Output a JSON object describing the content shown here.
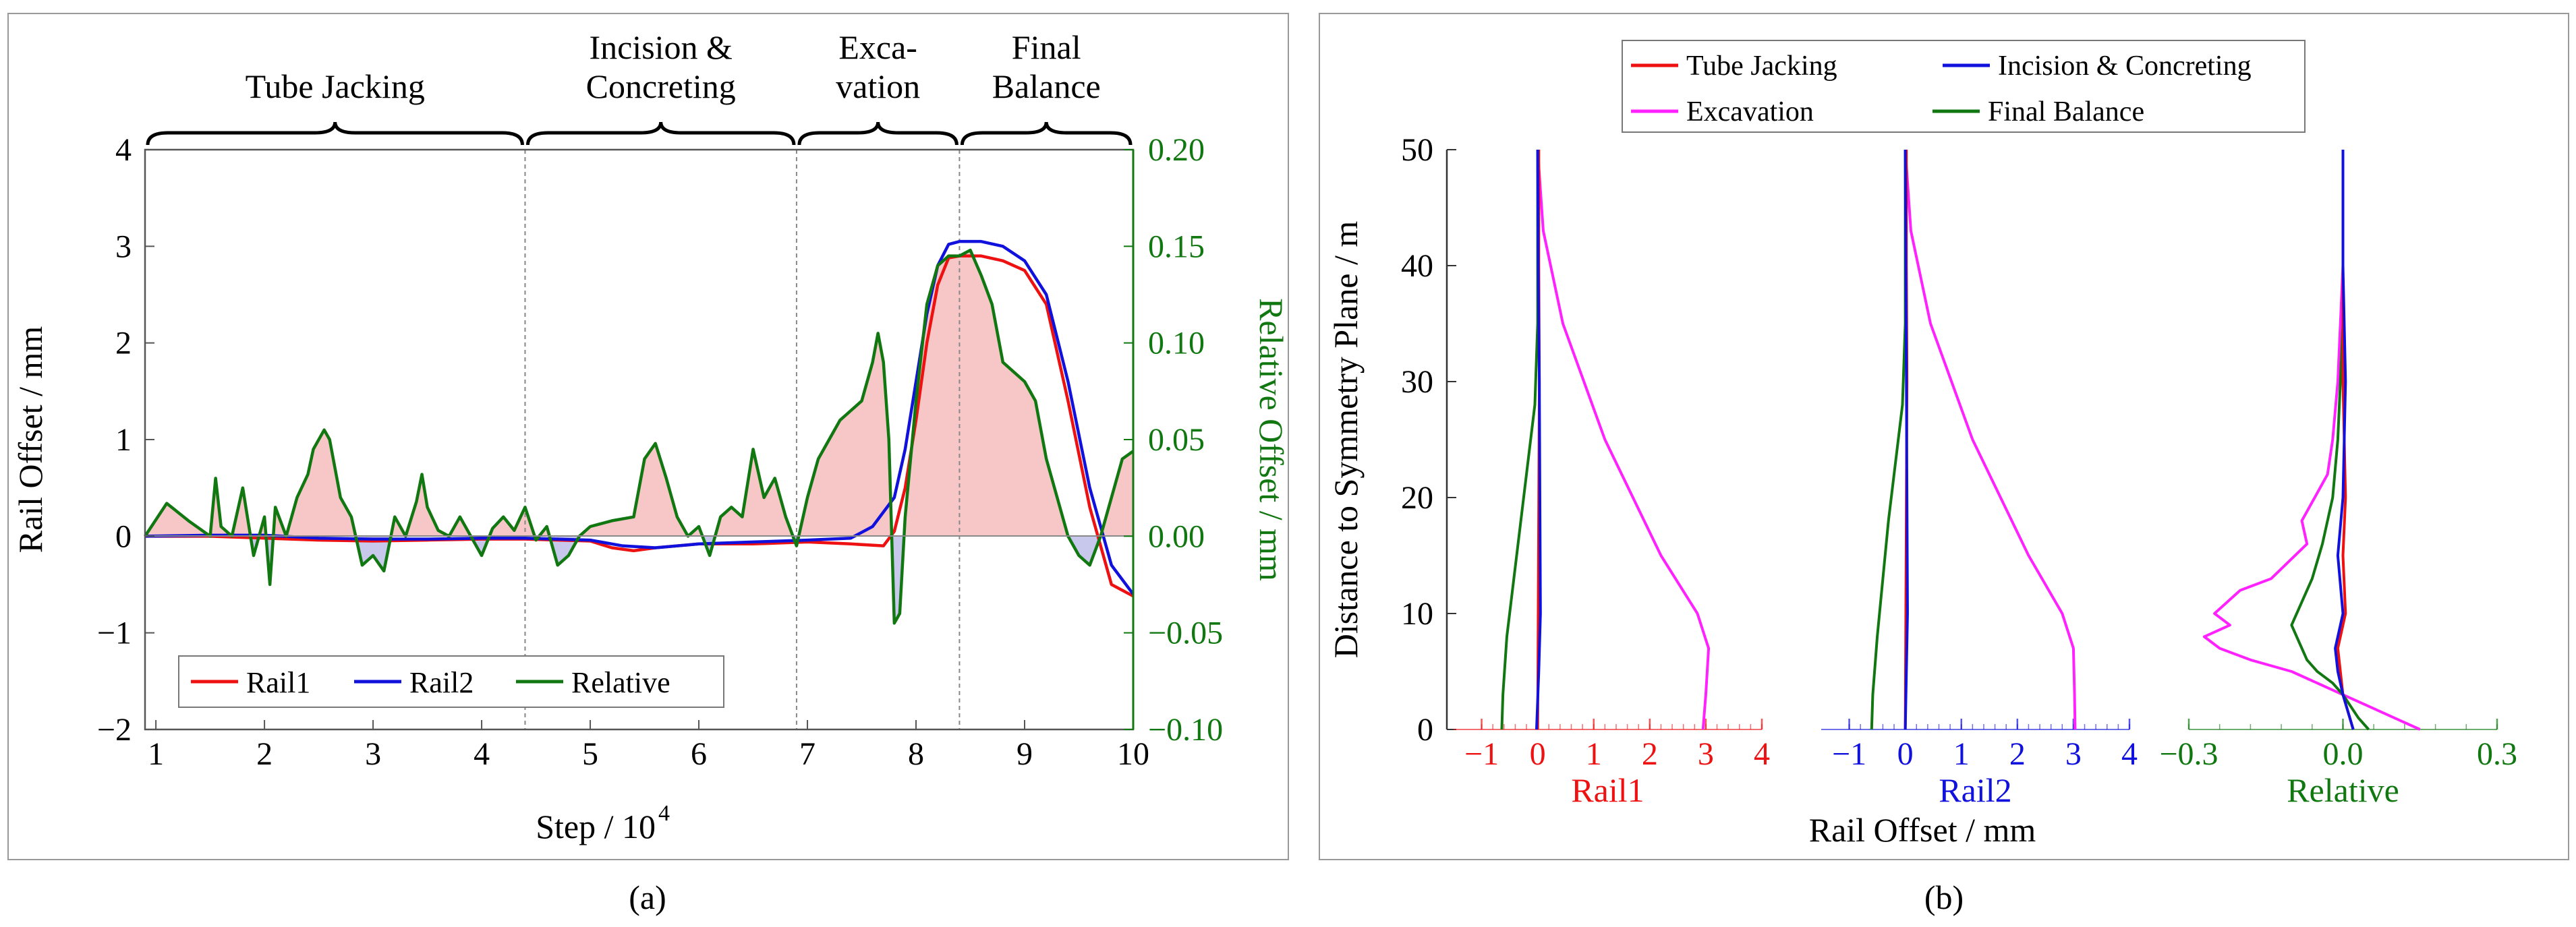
{
  "colors": {
    "rail1": "#ee1111",
    "rail2": "#1111dd",
    "relative": "#117711",
    "excavation": "#ff22ff",
    "fill_pos": "#f7c6c6",
    "fill_neg": "#c8c8ec",
    "grid": "#999999"
  },
  "panels": {
    "a": {
      "caption": "(a)"
    },
    "b": {
      "caption": "(b)"
    }
  },
  "chart_data": [
    {
      "id": "a",
      "type": "line",
      "xlabel": "Step / 10",
      "xlabel_exp": "4",
      "ylabel": "Rail Offset / mm",
      "ylabel_right": "Relative Offset / mm",
      "xlim": [
        0.9,
        10
      ],
      "ylim": [
        -2,
        4
      ],
      "ylim_right": [
        -0.1,
        0.2
      ],
      "xticks": [
        1,
        2,
        3,
        4,
        5,
        6,
        7,
        8,
        9,
        10
      ],
      "yticks": [
        -2,
        -1,
        0,
        1,
        2,
        3,
        4
      ],
      "yticks_right": [
        "−0.10",
        "−0.05",
        "0.00",
        "0.05",
        "0.10",
        "0.15",
        "0.20"
      ],
      "phases": [
        {
          "name": "Tube Jacking",
          "lines": [
            "Tube Jacking"
          ],
          "start": 0.9,
          "end": 4.4
        },
        {
          "name": "Incision & Concreting",
          "lines": [
            "Incision &",
            "Concreting"
          ],
          "start": 4.4,
          "end": 6.9
        },
        {
          "name": "Excavation",
          "lines": [
            "Exca-",
            "vation"
          ],
          "start": 6.9,
          "end": 8.4
        },
        {
          "name": "Final Balance",
          "lines": [
            "Final",
            "Balance"
          ],
          "start": 8.4,
          "end": 10
        }
      ],
      "legend": [
        "Rail1",
        "Rail2",
        "Relative"
      ],
      "series": [
        {
          "name": "Rail1",
          "axis": "left",
          "x": [
            0.9,
            1.5,
            2.0,
            2.5,
            3.0,
            3.5,
            4.0,
            4.4,
            5.0,
            5.2,
            5.4,
            5.6,
            6.0,
            6.5,
            7.0,
            7.4,
            7.7,
            7.8,
            7.9,
            8.0,
            8.1,
            8.2,
            8.3,
            8.4,
            8.6,
            8.8,
            9.0,
            9.2,
            9.4,
            9.6,
            9.8,
            10.0
          ],
          "y": [
            0,
            0,
            -0.02,
            -0.04,
            -0.05,
            -0.04,
            -0.03,
            -0.03,
            -0.05,
            -0.12,
            -0.15,
            -0.12,
            -0.08,
            -0.08,
            -0.06,
            -0.08,
            -0.1,
            0.05,
            0.5,
            1.2,
            2.0,
            2.6,
            2.88,
            2.9,
            2.9,
            2.85,
            2.75,
            2.4,
            1.4,
            0.3,
            -0.5,
            -0.62
          ]
        },
        {
          "name": "Rail2",
          "axis": "left",
          "x": [
            0.9,
            1.5,
            2.0,
            2.5,
            3.0,
            3.5,
            4.0,
            4.4,
            5.0,
            5.3,
            5.6,
            6.0,
            6.5,
            7.0,
            7.4,
            7.6,
            7.8,
            7.9,
            8.0,
            8.1,
            8.2,
            8.3,
            8.4,
            8.6,
            8.8,
            9.0,
            9.2,
            9.4,
            9.6,
            9.8,
            10.0
          ],
          "y": [
            0,
            0.01,
            0.01,
            -0.02,
            -0.03,
            -0.03,
            -0.02,
            -0.02,
            -0.04,
            -0.1,
            -0.12,
            -0.08,
            -0.06,
            -0.04,
            -0.02,
            0.1,
            0.4,
            0.9,
            1.6,
            2.3,
            2.8,
            3.02,
            3.05,
            3.05,
            3.0,
            2.85,
            2.5,
            1.6,
            0.5,
            -0.3,
            -0.6
          ]
        },
        {
          "name": "Relative",
          "axis": "right",
          "x": [
            0.9,
            1.1,
            1.3,
            1.5,
            1.55,
            1.6,
            1.7,
            1.8,
            1.9,
            2.0,
            2.05,
            2.1,
            2.2,
            2.3,
            2.4,
            2.45,
            2.55,
            2.6,
            2.7,
            2.8,
            2.9,
            3.0,
            3.1,
            3.2,
            3.3,
            3.4,
            3.45,
            3.5,
            3.6,
            3.7,
            3.8,
            3.9,
            4.0,
            4.1,
            4.2,
            4.3,
            4.4,
            4.5,
            4.6,
            4.7,
            4.8,
            4.9,
            5.0,
            5.2,
            5.4,
            5.5,
            5.6,
            5.7,
            5.8,
            5.9,
            6.0,
            6.1,
            6.2,
            6.3,
            6.4,
            6.5,
            6.6,
            6.7,
            6.8,
            6.9,
            7.0,
            7.1,
            7.2,
            7.3,
            7.4,
            7.5,
            7.6,
            7.65,
            7.7,
            7.75,
            7.8,
            7.85,
            7.9,
            8.0,
            8.1,
            8.2,
            8.3,
            8.4,
            8.5,
            8.6,
            8.7,
            8.8,
            8.9,
            9.0,
            9.1,
            9.2,
            9.3,
            9.4,
            9.5,
            9.6,
            9.7,
            9.8,
            9.9,
            10.0
          ],
          "y": [
            0,
            0.017,
            0.008,
            0.0,
            0.03,
            0.005,
            0.0,
            0.025,
            -0.01,
            0.01,
            -0.025,
            0.015,
            0.0,
            0.02,
            0.032,
            0.045,
            0.055,
            0.05,
            0.02,
            0.01,
            -0.015,
            -0.01,
            -0.018,
            0.01,
            0.0,
            0.018,
            0.032,
            0.015,
            0.003,
            0.0,
            0.01,
            0.0,
            -0.01,
            0.004,
            0.01,
            0.003,
            0.015,
            -0.002,
            0.005,
            -0.015,
            -0.01,
            0.0,
            0.005,
            0.008,
            0.01,
            0.04,
            0.048,
            0.03,
            0.01,
            0.0,
            0.005,
            -0.01,
            0.01,
            0.015,
            0.01,
            0.045,
            0.02,
            0.03,
            0.01,
            -0.005,
            0.02,
            0.04,
            0.05,
            0.06,
            0.065,
            0.07,
            0.09,
            0.105,
            0.09,
            0.05,
            -0.045,
            -0.04,
            0.01,
            0.07,
            0.12,
            0.14,
            0.145,
            0.145,
            0.148,
            0.135,
            0.12,
            0.09,
            0.085,
            0.08,
            0.07,
            0.04,
            0.02,
            0.0,
            -0.01,
            -0.015,
            0.0,
            0.02,
            0.04,
            0.044
          ]
        }
      ]
    },
    {
      "id": "b",
      "type": "line",
      "xlabel": "Rail Offset / mm",
      "ylabel": "Distance to Symmetry Plane / m",
      "ylim": [
        0,
        50
      ],
      "yticks": [
        0,
        10,
        20,
        30,
        40,
        50
      ],
      "legend": [
        "Tube Jacking",
        "Incision & Concreting",
        "Excavation",
        "Final Balance"
      ],
      "subplots": [
        {
          "name": "Rail1",
          "xlim": [
            -1.5,
            4
          ],
          "xticks": [
            -1,
            0,
            1,
            2,
            3,
            4
          ],
          "xticklabels": [
            "−1",
            "0",
            "1",
            "2",
            "3",
            "4"
          ]
        },
        {
          "name": "Rail2",
          "xlim": [
            -1.5,
            4
          ],
          "xticks": [
            -1,
            0,
            1,
            2,
            3,
            4
          ],
          "xticklabels": [
            "−1",
            "0",
            "1",
            "2",
            "3",
            "4"
          ]
        },
        {
          "name": "Relative",
          "xlim": [
            -0.3,
            0.3
          ],
          "xticks": [
            -0.3,
            0.0,
            0.3
          ],
          "xticklabels": [
            "−0.3",
            "0.0",
            "0.3"
          ]
        }
      ],
      "profiles": {
        "Rail1": [
          {
            "name": "Tube Jacking",
            "x": [
              0.02,
              0.02,
              0.03,
              0.02,
              0.01,
              0.0
            ],
            "y": [
              50,
              40,
              30,
              20,
              10,
              0
            ]
          },
          {
            "name": "Incision & Concreting",
            "x": [
              0.0,
              0.01,
              0.03,
              0.04,
              0.05,
              0.02,
              -0.02
            ],
            "y": [
              50,
              40,
              30,
              20,
              10,
              5,
              0
            ]
          },
          {
            "name": "Excavation",
            "x": [
              0.0,
              0.1,
              0.45,
              1.2,
              2.2,
              2.85,
              3.05,
              3.0,
              2.95
            ],
            "y": [
              50,
              43,
              35,
              25,
              15,
              10,
              7,
              3,
              0
            ]
          },
          {
            "name": "Final Balance",
            "x": [
              0.0,
              0.0,
              -0.05,
              -0.3,
              -0.55,
              -0.62,
              -0.64
            ],
            "y": [
              50,
              35,
              28,
              18,
              8,
              3,
              0
            ]
          }
        ],
        "Rail2": [
          {
            "name": "Tube Jacking",
            "x": [
              0.02,
              0.02,
              0.03,
              0.02,
              0.01,
              0.0
            ],
            "y": [
              50,
              40,
              30,
              20,
              10,
              0
            ]
          },
          {
            "name": "Incision & Concreting",
            "x": [
              0.0,
              0.01,
              0.02,
              0.03,
              0.04,
              0.02,
              0.0
            ],
            "y": [
              50,
              40,
              30,
              20,
              10,
              5,
              0
            ]
          },
          {
            "name": "Excavation",
            "x": [
              0.0,
              0.1,
              0.45,
              1.2,
              2.2,
              2.8,
              3.0,
              3.02,
              3.03
            ],
            "y": [
              50,
              43,
              35,
              25,
              15,
              10,
              7,
              3,
              0
            ]
          },
          {
            "name": "Final Balance",
            "x": [
              0.0,
              0.0,
              -0.05,
              -0.3,
              -0.5,
              -0.58,
              -0.6
            ],
            "y": [
              50,
              35,
              28,
              18,
              8,
              3,
              0
            ]
          }
        ],
        "Relative": [
          {
            "name": "Tube Jacking",
            "x": [
              0.0,
              0.0,
              0.0,
              0.005,
              0.0,
              0.005,
              -0.01,
              -0.005,
              0.0,
              0.02
            ],
            "y": [
              50,
              40,
              30,
              20,
              15,
              10,
              7,
              5,
              3,
              0
            ]
          },
          {
            "name": "Incision & Concreting",
            "x": [
              0.0,
              0.0,
              0.005,
              0.0,
              -0.01,
              0.0,
              -0.015,
              -0.01,
              0.0,
              0.02
            ],
            "y": [
              50,
              40,
              30,
              20,
              15,
              10,
              7,
              5,
              3,
              0
            ]
          },
          {
            "name": "Excavation",
            "x": [
              0.0,
              0.0,
              -0.01,
              -0.02,
              -0.03,
              -0.08,
              -0.07,
              -0.14,
              -0.2,
              -0.25,
              -0.22,
              -0.27,
              -0.24,
              -0.18,
              -0.1,
              -0.05,
              0.0,
              0.05,
              0.1,
              0.15
            ],
            "y": [
              50,
              40,
              30,
              25,
              22,
              18,
              16,
              13,
              12,
              10,
              9,
              8,
              7,
              6,
              5,
              4,
              3,
              2,
              1,
              0
            ]
          },
          {
            "name": "Final Balance",
            "x": [
              0.0,
              0.0,
              -0.01,
              -0.02,
              -0.04,
              -0.06,
              -0.08,
              -0.1,
              -0.09,
              -0.07,
              -0.05,
              -0.02,
              0.0,
              0.03,
              0.05
            ],
            "y": [
              50,
              35,
              25,
              20,
              16,
              13,
              11,
              9,
              8,
              6,
              5,
              4,
              3,
              1,
              0
            ]
          }
        ]
      }
    }
  ]
}
